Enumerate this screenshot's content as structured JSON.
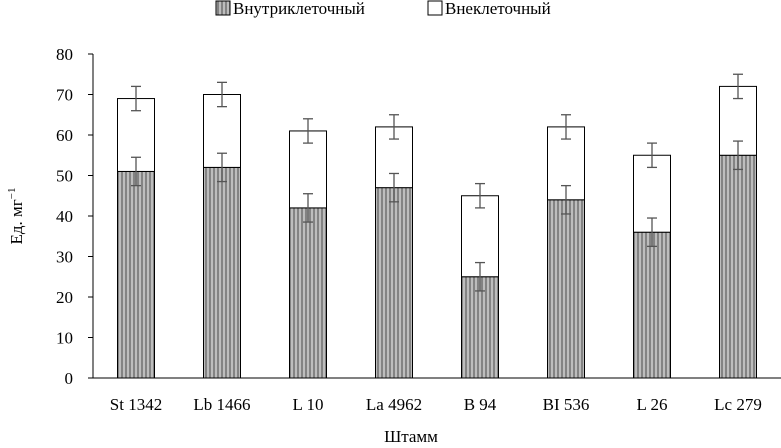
{
  "chart_data": {
    "type": "bar",
    "stacked": true,
    "title": "",
    "xlabel": "Штамм",
    "ylabel": "Ед. мг",
    "ylabel_superscript": "−1",
    "ylim": [
      0,
      80
    ],
    "yticks": [
      0,
      10,
      20,
      30,
      40,
      50,
      60,
      70,
      80
    ],
    "grid": false,
    "legend_position": "top",
    "categories": [
      "St 1342",
      "Lb 1466",
      "L 10",
      "La 4962",
      "B 94",
      "BI 536",
      "L 26",
      "Lc 279"
    ],
    "series": [
      {
        "name": "Внутриклеточный",
        "fill": "#b8b8b8",
        "pattern": "vertical-stripes",
        "values": [
          51,
          52,
          42,
          47,
          25,
          44,
          36,
          55
        ],
        "error": [
          3.5,
          3.5,
          3.5,
          3.5,
          3.5,
          3.5,
          3.5,
          3.5
        ]
      },
      {
        "name": "Внеклеточный",
        "fill": "#ffffff",
        "pattern": "none",
        "values": [
          18,
          18,
          19,
          15,
          20,
          18,
          19,
          17
        ],
        "error": [
          3,
          3,
          3,
          3,
          3,
          3,
          3,
          3
        ]
      }
    ]
  }
}
